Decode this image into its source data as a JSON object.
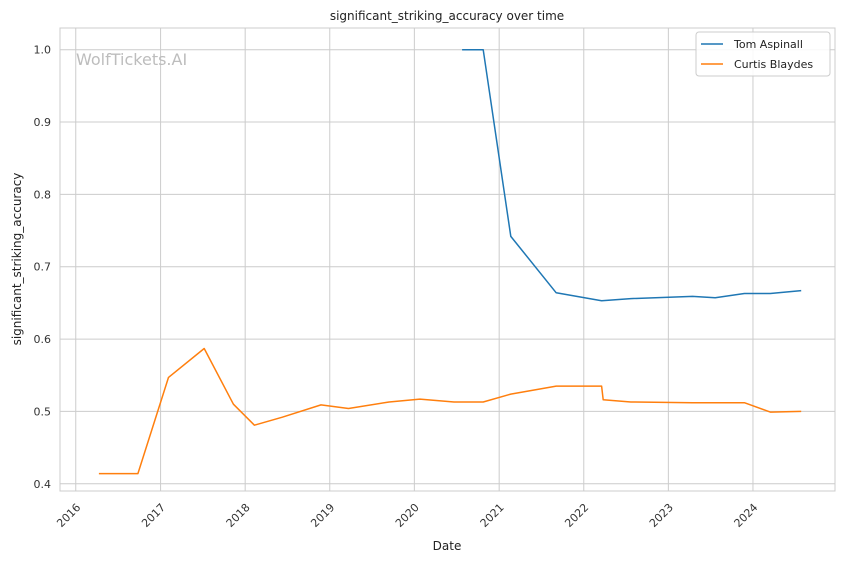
{
  "chart_data": {
    "type": "line",
    "title": "significant_striking_accuracy over time",
    "xlabel": "Date",
    "ylabel": "significant_striking_accuracy",
    "watermark": "WolfTickets.AI",
    "xlim": [
      "2015-10-25",
      "2024-12-20"
    ],
    "ylim": [
      0.39,
      1.03
    ],
    "x_ticks": [
      "2016",
      "2017",
      "2018",
      "2019",
      "2020",
      "2021",
      "2022",
      "2023",
      "2024"
    ],
    "y_ticks": [
      "0.4",
      "0.5",
      "0.6",
      "0.7",
      "0.8",
      "0.9",
      "1.0"
    ],
    "grid": true,
    "legend_position": "top-right",
    "series": [
      {
        "name": "Tom Aspinall",
        "color": "#1f77b4",
        "points": [
          [
            "2020-07-25",
            1.0
          ],
          [
            "2020-10-24",
            1.0
          ],
          [
            "2021-02-20",
            0.742
          ],
          [
            "2021-09-04",
            0.664
          ],
          [
            "2022-03-19",
            0.653
          ],
          [
            "2022-07-23",
            0.656
          ],
          [
            "2023-04-15",
            0.659
          ],
          [
            "2023-07-22",
            0.657
          ],
          [
            "2023-11-25",
            0.663
          ],
          [
            "2024-03-16",
            0.663
          ],
          [
            "2024-07-27",
            0.667
          ]
        ]
      },
      {
        "name": "Curtis Blaydes",
        "color": "#ff7f0e",
        "points": [
          [
            "2016-04-10",
            0.414
          ],
          [
            "2016-09-25",
            0.414
          ],
          [
            "2017-02-04",
            0.547
          ],
          [
            "2017-07-08",
            0.587
          ],
          [
            "2017-11-11",
            0.51
          ],
          [
            "2018-02-10",
            0.481
          ],
          [
            "2018-06-10",
            0.492
          ],
          [
            "2018-11-24",
            0.509
          ],
          [
            "2019-03-23",
            0.504
          ],
          [
            "2019-09-14",
            0.513
          ],
          [
            "2020-01-25",
            0.517
          ],
          [
            "2020-06-20",
            0.513
          ],
          [
            "2020-10-24",
            0.513
          ],
          [
            "2021-02-20",
            0.524
          ],
          [
            "2021-09-04",
            0.535
          ],
          [
            "2022-03-19",
            0.535
          ],
          [
            "2022-03-26",
            0.516
          ],
          [
            "2022-07-23",
            0.513
          ],
          [
            "2023-04-15",
            0.512
          ],
          [
            "2023-11-25",
            0.512
          ],
          [
            "2024-03-16",
            0.499
          ],
          [
            "2024-07-27",
            0.5
          ]
        ]
      }
    ]
  }
}
